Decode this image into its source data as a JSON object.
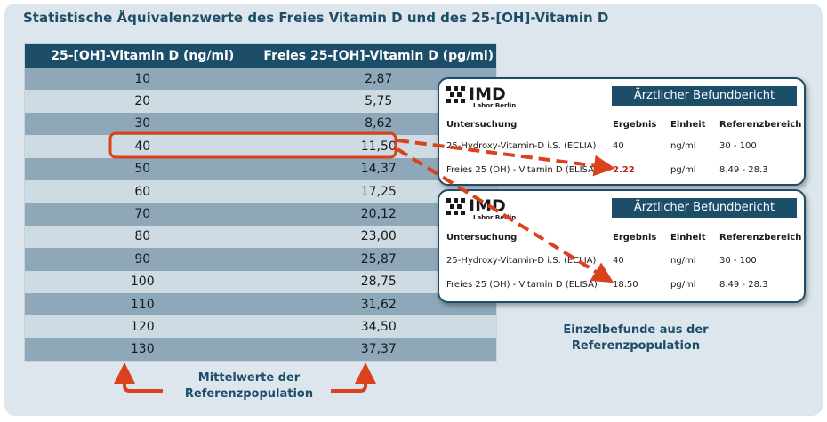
{
  "title": "Statistische Äquivalenzwerte des Freies Vitamin D und des 25-[OH]-Vitamin D",
  "table": {
    "headers": [
      "25-[OH]-Vitamin D (ng/ml)",
      "Freies 25-[OH]-Vitamin D (pg/ml)"
    ],
    "rows": [
      [
        "10",
        "2,87"
      ],
      [
        "20",
        "5,75"
      ],
      [
        "30",
        "8,62"
      ],
      [
        "40",
        "11,50"
      ],
      [
        "50",
        "14,37"
      ],
      [
        "60",
        "17,25"
      ],
      [
        "70",
        "20,12"
      ],
      [
        "80",
        "23,00"
      ],
      [
        "90",
        "25,87"
      ],
      [
        "100",
        "28,75"
      ],
      [
        "110",
        "31,62"
      ],
      [
        "120",
        "34,50"
      ],
      [
        "130",
        "37,37"
      ]
    ],
    "highlight_row": 3
  },
  "cards": [
    {
      "logo": "IMD",
      "logo_sub": "Labor Berlin",
      "header": "Ärztlicher Befundbericht",
      "columns": [
        "Untersuchung",
        "Ergebnis",
        "Einheit",
        "Referenzbereich"
      ],
      "rows": [
        [
          "25-Hydroxy-Vitamin-D i.S. (ECLIA)",
          "40",
          "ng/ml",
          "30 - 100"
        ],
        [
          "Freies 25 (OH) - Vitamin D (ELISA)",
          "2.22",
          "pg/ml",
          "8.49 - 28.3"
        ]
      ]
    },
    {
      "logo": "IMD",
      "logo_sub": "Labor Berlin",
      "header": "Ärztlicher Befundbericht",
      "columns": [
        "Untersuchung",
        "Ergebnis",
        "Einheit",
        "Referenzbereich"
      ],
      "rows": [
        [
          "25-Hydroxy-Vitamin-D i.S. (ECLIA)",
          "40",
          "ng/ml",
          "30 - 100"
        ],
        [
          "Freies 25 (OH) - Vitamin D (ELISA)",
          "18.50",
          "pg/ml",
          "8.49 - 28.3"
        ]
      ]
    }
  ],
  "captions": {
    "left_line1": "Mittelwerte der",
    "left_line2": "Referenzpopulation",
    "right_line1": "Einzelbefunde aus der",
    "right_line2": "Referenzpopulation"
  },
  "colors": {
    "dark_blue": "#1d4e69",
    "arrow_red": "#d9421c",
    "result_red": "#c0271b"
  }
}
